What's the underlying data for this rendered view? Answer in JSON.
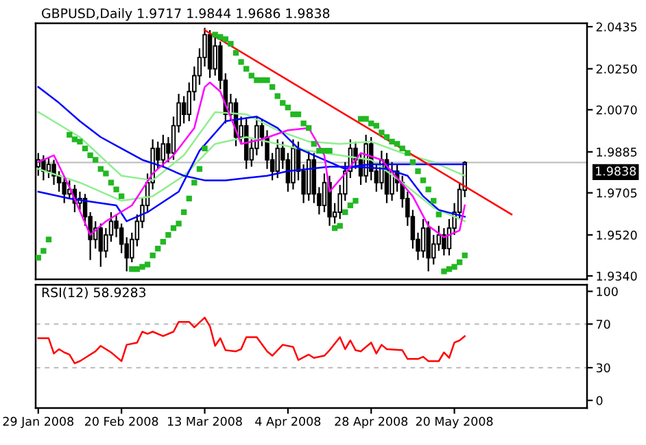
{
  "chart_data": [
    {
      "type": "candlestick",
      "title": "GBPUSD,Daily 1.9717 1.9844 1.9686 1.9838",
      "categories": [
        null,
        null,
        null,
        null,
        null,
        null,
        null,
        null,
        null,
        null,
        null,
        null,
        null,
        null,
        null,
        null,
        null,
        null,
        null,
        null,
        null,
        null,
        null,
        null,
        null,
        null,
        null,
        null,
        null,
        null,
        null,
        null,
        null,
        null,
        null,
        null,
        null,
        null,
        null,
        null,
        null,
        null,
        null,
        null,
        null,
        null,
        null,
        null,
        null,
        null,
        null,
        null,
        null,
        null,
        null,
        null,
        null,
        null,
        null,
        null,
        null,
        null,
        null,
        null,
        null,
        null,
        null,
        null,
        null,
        null,
        null,
        null,
        null,
        null,
        null,
        null,
        null,
        null,
        null,
        null,
        null,
        null,
        null,
        null,
        null,
        null,
        null,
        null,
        null,
        null,
        null,
        null,
        null,
        null,
        null,
        null,
        null,
        null,
        null,
        null,
        null,
        null,
        null,
        null,
        null,
        null
      ],
      "ohlc": [
        [
          1.982,
          1.988,
          1.978,
          1.985
        ],
        [
          1.985,
          1.987,
          1.976,
          1.98
        ],
        [
          1.98,
          1.986,
          1.977,
          1.983
        ],
        [
          1.983,
          1.985,
          1.974,
          1.978
        ],
        [
          1.978,
          1.98,
          1.971,
          1.975
        ],
        [
          1.975,
          1.977,
          1.966,
          1.97
        ],
        [
          1.97,
          1.976,
          1.968,
          1.972
        ],
        [
          1.972,
          1.974,
          1.962,
          1.966
        ],
        [
          1.966,
          1.971,
          1.963,
          1.968
        ],
        [
          1.968,
          1.97,
          1.956,
          1.96
        ],
        [
          1.96,
          1.962,
          1.941,
          1.95
        ],
        [
          1.95,
          1.958,
          1.946,
          1.955
        ],
        [
          1.955,
          1.957,
          1.938,
          1.945
        ],
        [
          1.945,
          1.955,
          1.942,
          1.952
        ],
        [
          1.952,
          1.962,
          1.949,
          1.958
        ],
        [
          1.958,
          1.961,
          1.951,
          1.955
        ],
        [
          1.955,
          1.957,
          1.944,
          1.948
        ],
        [
          1.948,
          1.951,
          1.936,
          1.942
        ],
        [
          1.942,
          1.953,
          1.94,
          1.95
        ],
        [
          1.95,
          1.961,
          1.947,
          1.958
        ],
        [
          1.958,
          1.968,
          1.955,
          1.965
        ],
        [
          1.965,
          1.979,
          1.962,
          1.975
        ],
        [
          1.975,
          1.994,
          1.972,
          1.99
        ],
        [
          1.99,
          1.993,
          1.981,
          1.985
        ],
        [
          1.985,
          1.996,
          1.982,
          1.992
        ],
        [
          1.992,
          1.995,
          1.984,
          1.988
        ],
        [
          1.988,
          2.004,
          1.985,
          2.0
        ],
        [
          2.0,
          2.014,
          1.997,
          2.01
        ],
        [
          2.01,
          2.013,
          2.001,
          2.005
        ],
        [
          2.005,
          2.019,
          2.002,
          2.015
        ],
        [
          2.015,
          2.026,
          2.011,
          2.022
        ],
        [
          2.022,
          2.034,
          2.018,
          2.03
        ],
        [
          2.03,
          2.043,
          2.026,
          2.04
        ],
        [
          2.04,
          2.042,
          2.021,
          2.025
        ],
        [
          2.025,
          2.039,
          2.022,
          2.035
        ],
        [
          2.035,
          2.037,
          2.016,
          2.02
        ],
        [
          2.02,
          2.023,
          2.001,
          2.005
        ],
        [
          2.005,
          2.014,
          2.002,
          2.01
        ],
        [
          2.01,
          2.012,
          1.991,
          1.995
        ],
        [
          1.995,
          2.004,
          1.992,
          2.0
        ],
        [
          2.0,
          2.003,
          1.981,
          1.985
        ],
        [
          1.985,
          1.994,
          1.982,
          1.99
        ],
        [
          1.99,
          2.004,
          1.987,
          2.0
        ],
        [
          2.0,
          2.003,
          1.991,
          1.995
        ],
        [
          1.995,
          1.998,
          1.981,
          1.985
        ],
        [
          1.985,
          1.988,
          1.976,
          1.98
        ],
        [
          1.98,
          1.994,
          1.977,
          1.99
        ],
        [
          1.99,
          1.993,
          1.981,
          1.985
        ],
        [
          1.985,
          1.988,
          1.971,
          1.975
        ],
        [
          1.975,
          1.994,
          1.972,
          1.99
        ],
        [
          1.99,
          1.993,
          1.976,
          1.98
        ],
        [
          1.98,
          1.983,
          1.966,
          1.97
        ],
        [
          1.97,
          1.989,
          1.967,
          1.985
        ],
        [
          1.985,
          1.988,
          1.966,
          1.97
        ],
        [
          1.97,
          1.973,
          1.961,
          1.965
        ],
        [
          1.965,
          1.979,
          1.962,
          1.975
        ],
        [
          1.975,
          1.978,
          1.956,
          1.96
        ],
        [
          1.96,
          1.966,
          1.957,
          1.962
        ],
        [
          1.962,
          1.974,
          1.959,
          1.97
        ],
        [
          1.97,
          1.984,
          1.967,
          1.98
        ],
        [
          1.98,
          1.994,
          1.977,
          1.99
        ],
        [
          1.99,
          1.993,
          1.981,
          1.985
        ],
        [
          1.985,
          1.988,
          1.974,
          1.978
        ],
        [
          1.978,
          1.996,
          1.975,
          1.992
        ],
        [
          1.992,
          1.995,
          1.976,
          1.98
        ],
        [
          1.98,
          1.983,
          1.971,
          1.975
        ],
        [
          1.975,
          1.989,
          1.972,
          1.985
        ],
        [
          1.985,
          1.988,
          1.966,
          1.97
        ],
        [
          1.97,
          1.984,
          1.967,
          1.98
        ],
        [
          1.98,
          1.983,
          1.971,
          1.975
        ],
        [
          1.975,
          1.978,
          1.964,
          1.968
        ],
        [
          1.968,
          1.971,
          1.956,
          1.96
        ],
        [
          1.96,
          1.963,
          1.946,
          1.95
        ],
        [
          1.95,
          1.953,
          1.941,
          1.945
        ],
        [
          1.945,
          1.959,
          1.942,
          1.955
        ],
        [
          1.955,
          1.958,
          1.936,
          1.942
        ],
        [
          1.942,
          1.952,
          1.939,
          1.948
        ],
        [
          1.948,
          1.956,
          1.945,
          1.952
        ],
        [
          1.952,
          1.955,
          1.943,
          1.946
        ],
        [
          1.946,
          1.959,
          1.943,
          1.955
        ],
        [
          1.955,
          1.966,
          1.952,
          1.962
        ],
        [
          1.962,
          1.975,
          1.959,
          1.972
        ],
        [
          1.9717,
          1.9844,
          1.9686,
          1.9838
        ],
        null,
        null,
        null,
        null,
        null,
        null,
        null,
        null,
        null,
        null,
        null,
        null,
        null,
        null,
        null,
        null,
        null,
        null,
        null,
        null,
        null,
        null,
        null
      ],
      "series": [
        {
          "type": "line",
          "color": "#90ee90",
          "values": [
            2.006,
            null,
            null,
            null,
            null,
            null,
            null,
            null,
            1.995,
            null,
            null,
            null,
            null,
            null,
            null,
            null,
            1.978,
            null,
            null,
            null,
            null,
            null,
            1.976,
            null,
            null,
            null,
            null,
            null,
            1.987,
            null,
            null,
            null,
            null,
            null,
            2.006,
            null,
            null,
            null,
            null,
            null,
            2.005,
            null,
            null,
            null,
            null,
            null,
            1.998,
            null,
            null,
            null,
            null,
            null,
            1.993,
            null,
            null,
            null,
            null,
            null,
            1.992,
            null,
            null,
            null,
            null,
            null,
            1.993,
            null,
            null,
            null,
            null,
            null,
            1.988,
            null,
            null,
            null,
            null,
            null,
            1.984,
            null,
            null,
            null,
            null,
            null,
            1.978,
            null,
            null,
            null,
            null,
            null,
            null,
            null,
            null,
            null,
            null,
            null,
            null,
            null,
            null,
            null,
            null,
            null,
            null,
            null,
            null,
            null,
            null,
            null
          ]
        },
        {
          "type": "line",
          "color": "#90ee90",
          "values": [
            1.981,
            null,
            null,
            null,
            null,
            null,
            null,
            null,
            1.975,
            null,
            null,
            null,
            null,
            null,
            null,
            null,
            1.967,
            null,
            null,
            null,
            null,
            null,
            1.969,
            null,
            null,
            null,
            null,
            null,
            1.978,
            null,
            null,
            null,
            null,
            null,
            1.992,
            null,
            null,
            null,
            null,
            null,
            1.995,
            null,
            null,
            null,
            null,
            null,
            1.992,
            null,
            null,
            null,
            null,
            null,
            1.989,
            null,
            null,
            null,
            null,
            null,
            1.987,
            null,
            null,
            null,
            null,
            null,
            1.985,
            null,
            null,
            null,
            null,
            null,
            1.975,
            null,
            null,
            null,
            null,
            null,
            1.964,
            null,
            null,
            null,
            null,
            null,
            1.958,
            null,
            null,
            null,
            null,
            null,
            null,
            null,
            null,
            null,
            null,
            null,
            null,
            null,
            null,
            null,
            null,
            null,
            null,
            null,
            null,
            null,
            null,
            null
          ]
        },
        {
          "type": "line",
          "color": "#0000ff",
          "values": [
            2.017,
            null,
            null,
            null,
            2.01,
            null,
            null,
            null,
            2.002,
            null,
            null,
            null,
            1.995,
            null,
            null,
            null,
            1.99,
            null,
            null,
            null,
            1.985,
            null,
            null,
            null,
            1.982,
            null,
            null,
            null,
            1.978,
            null,
            null,
            null,
            1.976,
            null,
            null,
            null,
            1.976,
            null,
            null,
            null,
            1.977,
            null,
            null,
            null,
            1.978,
            null,
            null,
            null,
            1.98,
            null,
            null,
            null,
            1.981,
            null,
            null,
            null,
            1.982,
            null,
            null,
            null,
            1.982,
            null,
            null,
            null,
            1.983,
            null,
            null,
            null,
            1.983,
            null,
            null,
            null,
            1.983,
            null,
            null,
            null,
            1.983,
            null,
            null,
            null,
            1.983,
            null,
            1.983,
            null,
            null,
            null,
            null,
            null,
            null,
            null,
            null,
            null,
            null,
            null,
            null,
            null,
            null,
            null,
            null,
            null,
            null,
            null,
            null,
            null,
            null,
            null
          ]
        },
        {
          "type": "line",
          "color": "#0000ff",
          "values": [
            1.971,
            null,
            null,
            null,
            null,
            null,
            1.968,
            null,
            null,
            null,
            null,
            null,
            null,
            null,
            null,
            1.965,
            null,
            1.958,
            null,
            null,
            null,
            1.962,
            null,
            null,
            null,
            null,
            null,
            1.971,
            null,
            null,
            null,
            1.989,
            null,
            null,
            null,
            null,
            2.002,
            null,
            null,
            null,
            null,
            null,
            2.004,
            null,
            null,
            null,
            1.999,
            null,
            null,
            null,
            1.99,
            null,
            null,
            null,
            null,
            null,
            1.984,
            null,
            null,
            1.981,
            null,
            1.982,
            null,
            null,
            null,
            null,
            null,
            1.981,
            null,
            null,
            null,
            1.978,
            null,
            null,
            1.969,
            null,
            null,
            1.963,
            null,
            null,
            null,
            null,
            1.96,
            null,
            null,
            null,
            null,
            null,
            null,
            null,
            null,
            null,
            null,
            null,
            null,
            null,
            null,
            null,
            null,
            null,
            null,
            null,
            null,
            null,
            null,
            null
          ]
        },
        {
          "type": "line",
          "color": "#ff00ff",
          "values": [
            1.984,
            null,
            null,
            1.987,
            null,
            null,
            1.973,
            null,
            null,
            null,
            1.952,
            null,
            null,
            1.958,
            null,
            null,
            null,
            null,
            1.965,
            null,
            null,
            null,
            1.979,
            null,
            null,
            null,
            1.987,
            null,
            null,
            null,
            1.999,
            null,
            2.017,
            2.019,
            null,
            2.015,
            null,
            null,
            1.998,
            1.992,
            null,
            null,
            null,
            1.994,
            null,
            null,
            null,
            null,
            1.998,
            null,
            null,
            null,
            1.999,
            null,
            null,
            1.987,
            1.971,
            null,
            null,
            1.979,
            null,
            null,
            1.988,
            null,
            null,
            null,
            1.985,
            null,
            null,
            1.977,
            null,
            null,
            1.969,
            null,
            null,
            1.956,
            null,
            null,
            1.951,
            null,
            null,
            1.954,
            1.965,
            null,
            null,
            null,
            null,
            null,
            null,
            null,
            null,
            null,
            null,
            null,
            null,
            null,
            null,
            null,
            null,
            null,
            null,
            null,
            null,
            null,
            null,
            null
          ]
        },
        {
          "type": "line",
          "color": "#ff0000",
          "values": [
            null,
            null,
            null,
            null,
            null,
            null,
            null,
            null,
            null,
            null,
            null,
            null,
            null,
            null,
            null,
            null,
            null,
            null,
            null,
            null,
            null,
            null,
            null,
            null,
            null,
            null,
            null,
            null,
            null,
            null,
            null,
            null,
            2.042,
            null,
            null,
            null,
            null,
            null,
            null,
            null,
            null,
            null,
            null,
            null,
            null,
            null,
            null,
            null,
            null,
            null,
            null,
            null,
            null,
            null,
            null,
            null,
            null,
            null,
            null,
            null,
            null,
            null,
            null,
            null,
            null,
            null,
            null,
            null,
            null,
            null,
            null,
            null,
            null,
            null,
            null,
            null,
            null,
            null,
            null,
            null,
            null,
            null,
            null,
            null,
            null,
            null,
            null,
            null,
            null,
            null,
            null,
            1.961,
            null,
            null,
            null,
            null,
            null,
            null,
            null,
            null,
            null,
            null,
            null,
            null,
            null,
            null
          ]
        },
        {
          "type": "scatter",
          "color": "#22b822",
          "marker": "square",
          "values": [
            1.942,
            1.945,
            1.95,
            null,
            null,
            null,
            1.996,
            1.994,
            1.993,
            1.99,
            1.987,
            1.985,
            1.981,
            1.979,
            1.975,
            1.972,
            1.969,
            null,
            1.937,
            1.937,
            1.938,
            1.939,
            1.943,
            1.946,
            1.949,
            1.952,
            1.955,
            1.957,
            1.962,
            1.968,
            1.975,
            1.981,
            1.99,
            null,
            2.04,
            2.039,
            2.038,
            2.036,
            2.032,
            2.028,
            2.025,
            2.022,
            2.02,
            2.02,
            2.02,
            2.017,
            2.013,
            2.01,
            2.008,
            2.005,
            2.005,
            2.001,
            1.999,
            1.992,
            1.989,
            1.989,
            1.989,
            1.955,
            1.956,
            1.962,
            1.965,
            1.967,
            2.003,
            2.003,
            2.001,
            2.0,
            1.997,
            1.995,
            1.993,
            1.992,
            1.99,
            1.988,
            1.984,
            1.98,
            1.976,
            1.972,
            1.967,
            1.961,
            1.936,
            1.937,
            1.938,
            1.94,
            1.943,
            null,
            null,
            null,
            null,
            null,
            null,
            null,
            null,
            null,
            null,
            null,
            null,
            null,
            null,
            null,
            null,
            null,
            null,
            null,
            null,
            null,
            null,
            null
          ]
        }
      ],
      "ylim": [
        1.9325,
        2.045
      ],
      "yticks": [
        2.0435,
        {
          "value": 2.025,
          "label": "2.0250"
        },
        {
          "value": 2.007,
          "label": "2.0070"
        },
        1.9885,
        1.9705,
        {
          "value": 1.952,
          "label": "1.9520"
        },
        {
          "value": 1.934,
          "label": "1.9340"
        }
      ],
      "ref_lines": [
        {
          "axis": "y",
          "value": 1.9838,
          "label": "1.9838",
          "color": "#c0c0c0",
          "line_style": "solid"
        }
      ],
      "tick_labels": "y",
      "grid": false,
      "legend": false
    },
    {
      "type": "line",
      "title": "RSI(12) 58.9283",
      "categories": [
        "29 Jan 2008",
        null,
        null,
        null,
        null,
        null,
        null,
        null,
        null,
        null,
        null,
        null,
        null,
        null,
        null,
        null,
        "20 Feb 2008",
        null,
        null,
        null,
        null,
        null,
        null,
        null,
        null,
        null,
        null,
        null,
        null,
        null,
        null,
        null,
        "13 Mar 2008",
        null,
        null,
        null,
        null,
        null,
        null,
        null,
        null,
        null,
        null,
        null,
        null,
        null,
        null,
        null,
        "4 Apr 2008",
        null,
        null,
        null,
        null,
        null,
        null,
        null,
        null,
        null,
        null,
        null,
        null,
        null,
        null,
        null,
        "28 Apr 2008",
        null,
        null,
        null,
        null,
        null,
        null,
        null,
        null,
        null,
        null,
        null,
        null,
        null,
        null,
        null,
        "20 May 2008",
        null,
        null,
        null,
        null,
        null,
        null,
        null,
        null,
        null,
        null,
        null,
        null,
        null,
        null,
        null,
        null,
        null,
        null,
        null,
        null,
        null,
        null,
        null,
        null,
        null
      ],
      "series": [
        {
          "color": "#ff0000",
          "values": [
            57,
            null,
            57,
            43,
            47,
            44,
            42,
            34,
            36,
            39,
            null,
            45,
            50,
            null,
            44,
            40,
            36,
            51,
            null,
            53,
            63,
            61,
            63,
            null,
            59,
            null,
            63,
            72,
            null,
            72,
            67,
            null,
            76,
            68,
            50,
            57,
            46,
            null,
            45,
            47,
            58,
            null,
            58,
            null,
            45,
            41,
            null,
            51,
            null,
            49,
            37,
            null,
            42,
            39,
            null,
            41,
            46,
            null,
            58,
            47,
            55,
            46,
            45,
            null,
            53,
            43,
            51,
            47,
            null,
            null,
            46,
            38,
            null,
            38,
            40,
            36,
            null,
            36,
            44,
            39,
            53,
            55,
            58.9283,
            null,
            null,
            null,
            null,
            null,
            null,
            null,
            null,
            null,
            null,
            null,
            null,
            null,
            null,
            null,
            null,
            null,
            null,
            null,
            null,
            null,
            null,
            null
          ]
        }
      ],
      "ylim": [
        -7,
        106
      ],
      "yticks": [
        0,
        30,
        70,
        100
      ],
      "ref_lines": [
        {
          "axis": "y",
          "value": 70,
          "color": "#c0c0c0",
          "line_style": "dashed"
        },
        {
          "axis": "y",
          "value": 30,
          "color": "#c0c0c0",
          "line_style": "dashed"
        }
      ],
      "grid": false,
      "legend": false
    }
  ]
}
